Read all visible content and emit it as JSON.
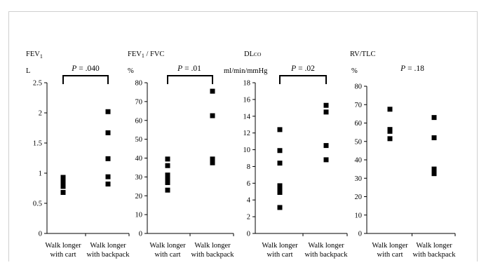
{
  "chart_data": [
    {
      "type": "scatter",
      "title": "FEV1",
      "ylabel": "L",
      "pvalue": "P = .040",
      "bracket": true,
      "categories": [
        "Walk longer\nwith cart",
        "Walk longer\nwith backpack"
      ],
      "ylim": [
        0,
        2.5
      ],
      "yticks": [
        0,
        0.5,
        1,
        1.5,
        2,
        2.5
      ],
      "ytick_labels": [
        "0",
        "0.5",
        "1",
        "1.5",
        "2",
        "2.5"
      ],
      "series": [
        {
          "values": [
            0.68,
            0.78,
            0.82,
            0.88,
            0.93
          ]
        },
        {
          "values": [
            0.82,
            0.94,
            1.24,
            1.67,
            2.02
          ]
        }
      ]
    },
    {
      "type": "scatter",
      "title": "FEV1 / FVC",
      "ylabel": "%",
      "pvalue": "P = .01",
      "bracket": true,
      "categories": [
        "Walk longer\nwith cart",
        "Walk longer\nwith backpack"
      ],
      "ylim": [
        0,
        80
      ],
      "yticks": [
        0,
        10,
        20,
        30,
        40,
        50,
        60,
        70,
        80
      ],
      "ytick_labels": [
        "0",
        "10",
        "20",
        "30",
        "40",
        "50",
        "60",
        "70",
        "80"
      ],
      "series": [
        {
          "values": [
            23,
            27,
            29,
            31,
            36,
            39.5
          ]
        },
        {
          "values": [
            37.5,
            39.5,
            62.5,
            75.5
          ]
        }
      ]
    },
    {
      "type": "scatter",
      "title": "DLco",
      "ylabel": "ml/min/mmHg",
      "pvalue": "P = .02",
      "bracket": true,
      "categories": [
        "Walk longer\nwith cart",
        "Walk longer\nwith backpack"
      ],
      "ylim": [
        0,
        18
      ],
      "yticks": [
        0,
        2,
        4,
        6,
        8,
        10,
        12,
        14,
        16,
        18
      ],
      "ytick_labels": [
        "0",
        "2",
        "4",
        "6",
        "8",
        "10",
        "12",
        "14",
        "16",
        "18"
      ],
      "series": [
        {
          "values": [
            3.1,
            4.9,
            5.3,
            5.7,
            8.4,
            9.9,
            12.4
          ]
        },
        {
          "values": [
            8.8,
            10.5,
            14.5,
            15.3
          ]
        }
      ]
    },
    {
      "type": "scatter",
      "title": "RV/TLC",
      "ylabel": "%",
      "pvalue": "P = .18",
      "bracket": false,
      "categories": [
        "Walk longer\nwith cart",
        "Walk longer\nwith backpack"
      ],
      "ylim": [
        0,
        80
      ],
      "yticks": [
        0,
        10,
        20,
        30,
        40,
        50,
        60,
        70,
        80
      ],
      "ytick_labels": [
        "0",
        "10",
        "20",
        "30",
        "40",
        "50",
        "60",
        "70",
        "80"
      ],
      "series": [
        {
          "values": [
            51.5,
            55.5,
            56.5,
            67.5
          ]
        },
        {
          "values": [
            32.5,
            34,
            35,
            52,
            63
          ]
        }
      ]
    }
  ]
}
